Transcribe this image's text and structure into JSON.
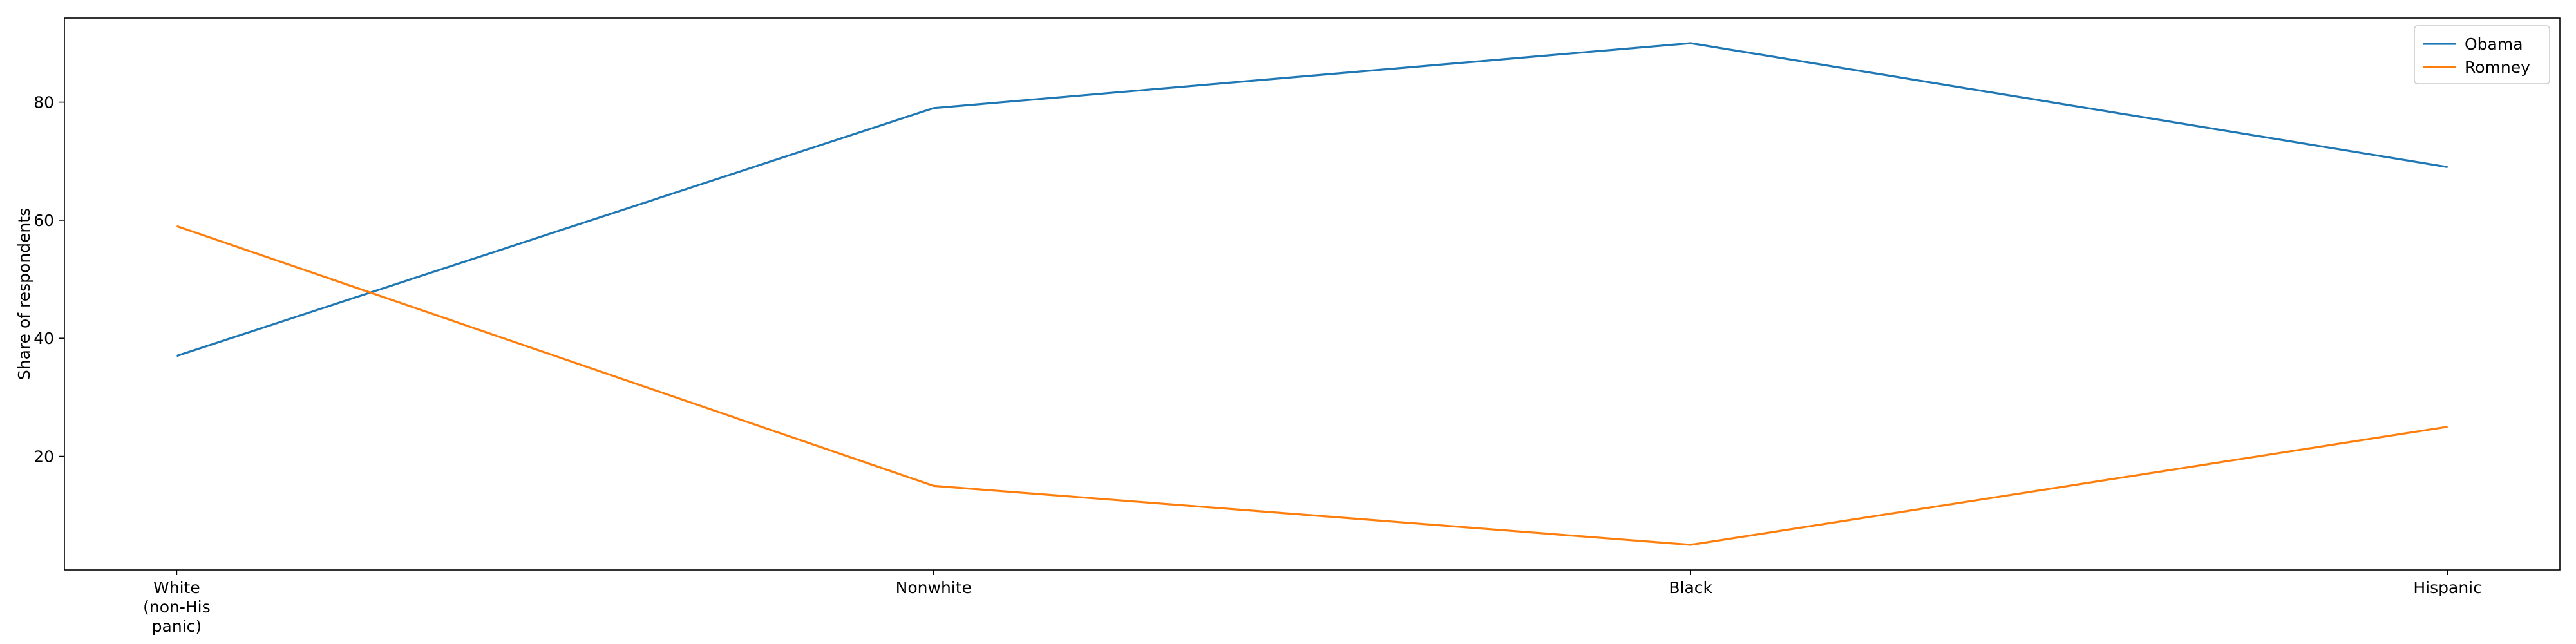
{
  "chart_data": {
    "type": "line",
    "categories": [
      "White (non-His panic)",
      "Nonwhite",
      "Black",
      "Hispanic"
    ],
    "category_lines": [
      [
        "White",
        "(non-His",
        "panic)"
      ],
      [
        "Nonwhite"
      ],
      [
        "Black"
      ],
      [
        "Hispanic"
      ]
    ],
    "series": [
      {
        "name": "Obama",
        "color": "#1f77b4",
        "values": [
          37,
          79,
          90,
          69
        ]
      },
      {
        "name": "Romney",
        "color": "#ff7f0e",
        "values": [
          59,
          15,
          5,
          25
        ]
      }
    ],
    "xlabel": "",
    "ylabel": "Share of respondents",
    "ylim": [
      0.75,
      94.25
    ],
    "yticks": [
      20,
      40,
      60,
      80
    ],
    "grid": false,
    "legend": "top-right"
  }
}
